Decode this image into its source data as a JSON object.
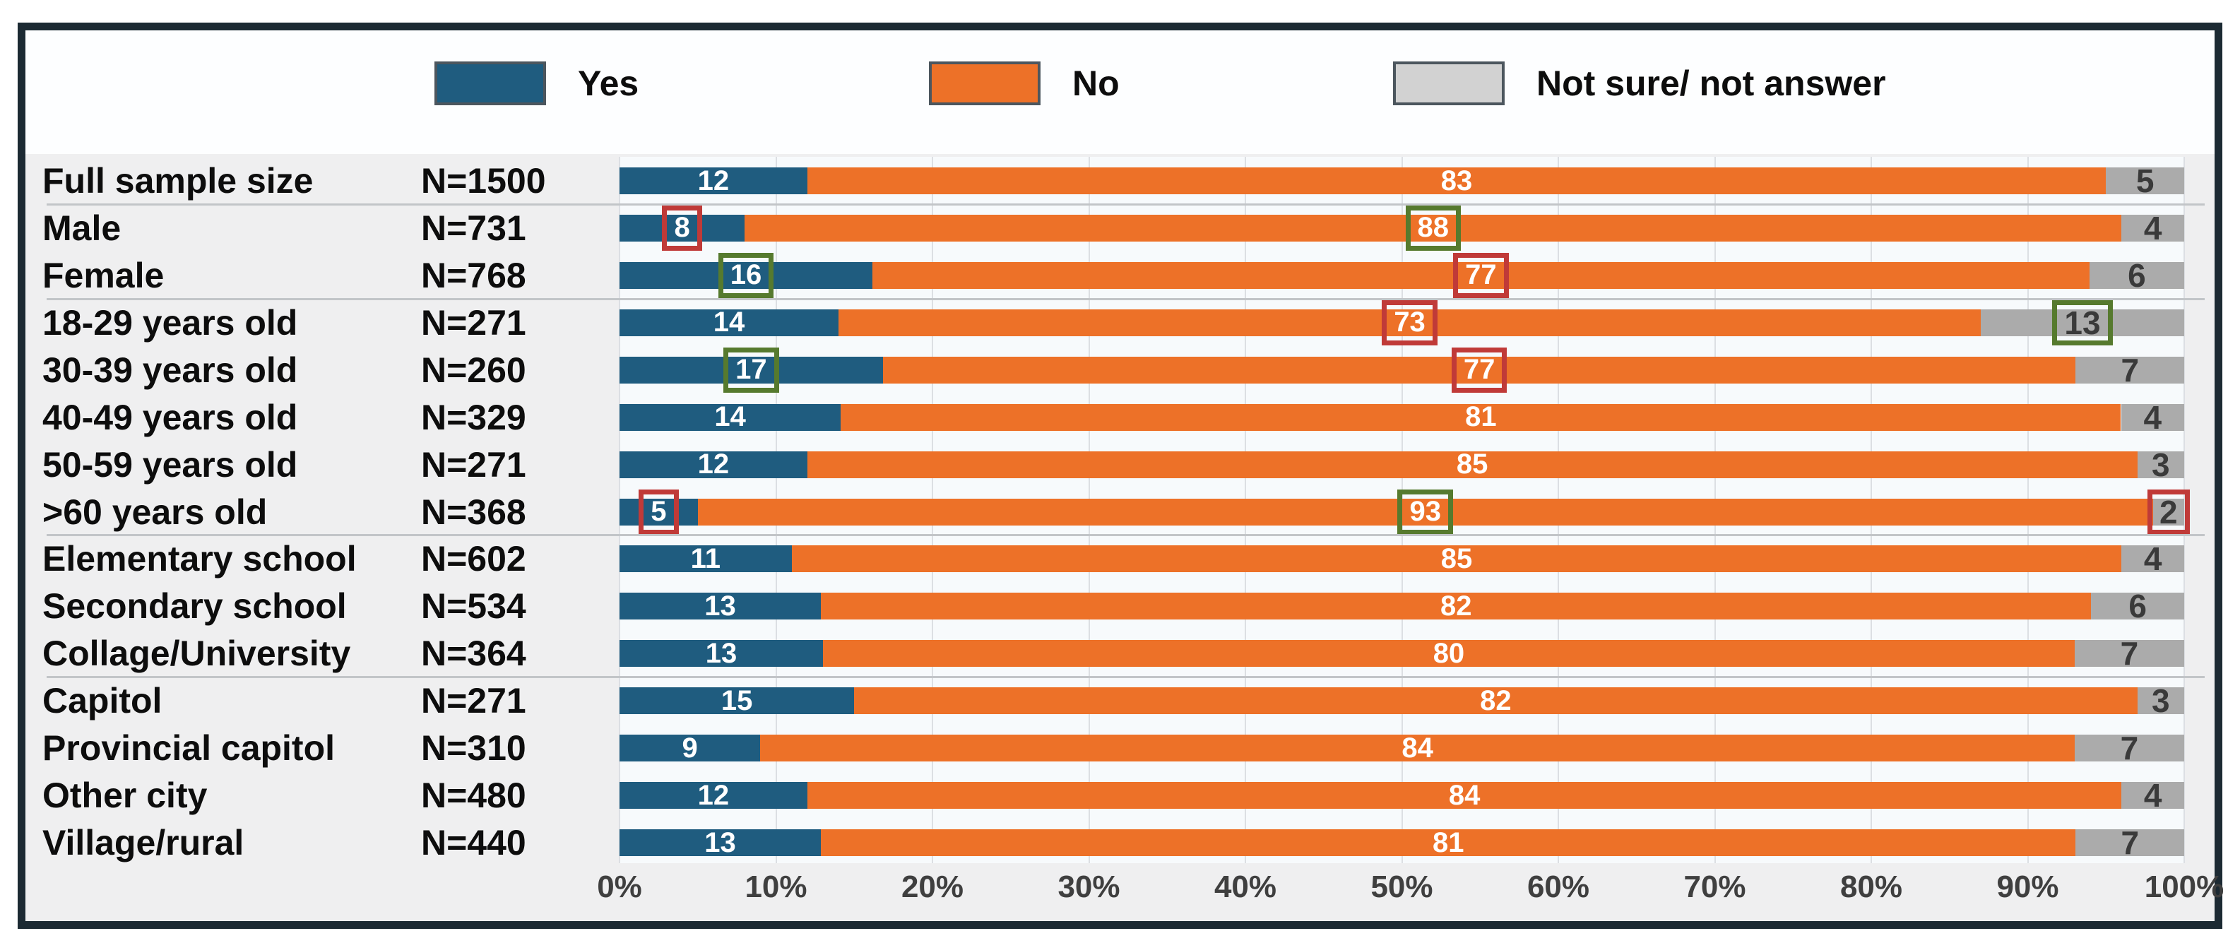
{
  "colors": {
    "yes": "#1F5C7F",
    "no": "#ED7128",
    "not_sure_bar": "#ABABAB",
    "not_sure_legend": "#D2D2D2",
    "box_red": "#C03A38",
    "box_green": "#567A2E",
    "frame_border": "#1C2A33",
    "panel_bg": "#EFEFF0",
    "plot_bg": "#F7FAFC",
    "gridline": "#DCDFE3",
    "separator": "#C2C5C8",
    "axis_text": "#3F3F3F",
    "dark_number_text": "#3A3A3A"
  },
  "legend": {
    "items": [
      {
        "label": "Yes",
        "key": "yes"
      },
      {
        "label": "No",
        "key": "no"
      },
      {
        "label": "Not sure/ not answer",
        "key": "not_sure"
      }
    ]
  },
  "axis": {
    "ticks": [
      "0%",
      "10%",
      "20%",
      "30%",
      "40%",
      "50%",
      "60%",
      "70%",
      "80%",
      "90%",
      "100%"
    ],
    "min": 0,
    "max": 100
  },
  "chart_data": {
    "type": "bar",
    "orientation": "horizontal",
    "stacked": true,
    "series_names": [
      "Yes",
      "No",
      "Not sure/ not answer"
    ],
    "xlim": [
      0,
      100
    ],
    "grid": true,
    "legend_position": "top",
    "group_breaks_after": [
      0,
      2,
      7,
      10
    ],
    "rows": [
      {
        "label": "Full sample size",
        "n": "N=1500",
        "values": [
          12,
          83,
          5
        ],
        "boxes": [
          null,
          null,
          null
        ]
      },
      {
        "label": "Male",
        "n": "N=731",
        "values": [
          8,
          88,
          4
        ],
        "boxes": [
          "red",
          "green",
          null
        ]
      },
      {
        "label": "Female",
        "n": "N=768",
        "values": [
          16,
          77,
          6
        ],
        "boxes": [
          "green",
          "red",
          null
        ]
      },
      {
        "label": "18-29 years old",
        "n": "N=271",
        "values": [
          14,
          73,
          13
        ],
        "boxes": [
          null,
          "red",
          "green"
        ]
      },
      {
        "label": "30-39 years old",
        "n": "N=260",
        "values": [
          17,
          77,
          7
        ],
        "boxes": [
          "green",
          "red",
          null
        ]
      },
      {
        "label": "40-49 years old",
        "n": "N=329",
        "values": [
          14,
          81,
          4
        ],
        "boxes": [
          null,
          null,
          null
        ]
      },
      {
        "label": "50-59 years old",
        "n": "N=271",
        "values": [
          12,
          85,
          3
        ],
        "boxes": [
          null,
          null,
          null
        ]
      },
      {
        "label": ">60 years old",
        "n": "N=368",
        "values": [
          5,
          93,
          2
        ],
        "boxes": [
          "red",
          "green",
          "red"
        ]
      },
      {
        "label": "Elementary school",
        "n": "N=602",
        "values": [
          11,
          85,
          4
        ],
        "boxes": [
          null,
          null,
          null
        ]
      },
      {
        "label": "Secondary school",
        "n": "N=534",
        "values": [
          13,
          82,
          6
        ],
        "boxes": [
          null,
          null,
          null
        ]
      },
      {
        "label": "Collage/University",
        "n": "N=364",
        "values": [
          13,
          80,
          7
        ],
        "boxes": [
          null,
          null,
          null
        ]
      },
      {
        "label": "Capitol",
        "n": "N=271",
        "values": [
          15,
          82,
          3
        ],
        "boxes": [
          null,
          null,
          null
        ]
      },
      {
        "label": "Provincial capitol",
        "n": "N=310",
        "values": [
          9,
          84,
          7
        ],
        "boxes": [
          null,
          null,
          null
        ]
      },
      {
        "label": "Other city",
        "n": "N=480",
        "values": [
          12,
          84,
          4
        ],
        "boxes": [
          null,
          null,
          null
        ]
      },
      {
        "label": "Village/rural",
        "n": "N=440",
        "values": [
          13,
          81,
          7
        ],
        "boxes": [
          null,
          null,
          null
        ]
      }
    ]
  }
}
